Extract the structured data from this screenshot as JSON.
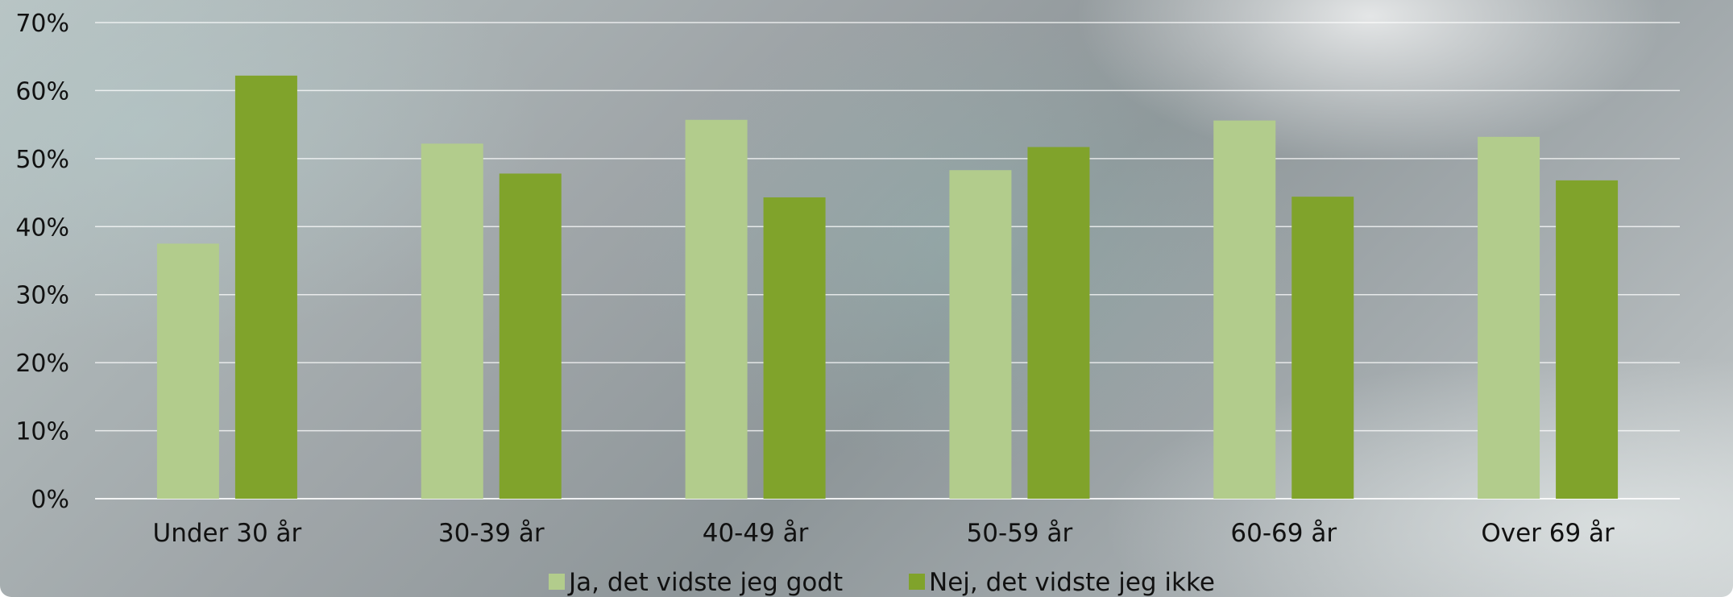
{
  "chart_data": {
    "type": "bar",
    "categories": [
      "Under 30 år",
      "30-39 år",
      "40-49 år",
      "50-59 år",
      "60-69 år",
      "Over 69 år"
    ],
    "series": [
      {
        "name": "Ja, det vidste jeg godt",
        "color": "#b2cc8c",
        "values": [
          37.5,
          52.2,
          55.7,
          48.3,
          55.6,
          53.2
        ]
      },
      {
        "name": "Nej, det vidste jeg ikke",
        "color": "#80a32b",
        "values": [
          62.2,
          47.8,
          44.3,
          51.7,
          44.4,
          46.8
        ]
      }
    ],
    "ylim": [
      0,
      70
    ],
    "yticks": [
      "0%",
      "10%",
      "20%",
      "30%",
      "40%",
      "50%",
      "60%",
      "70%"
    ],
    "ytick_values": [
      0,
      10,
      20,
      30,
      40,
      50,
      60,
      70
    ],
    "grid": true,
    "legend_position": "bottom"
  }
}
